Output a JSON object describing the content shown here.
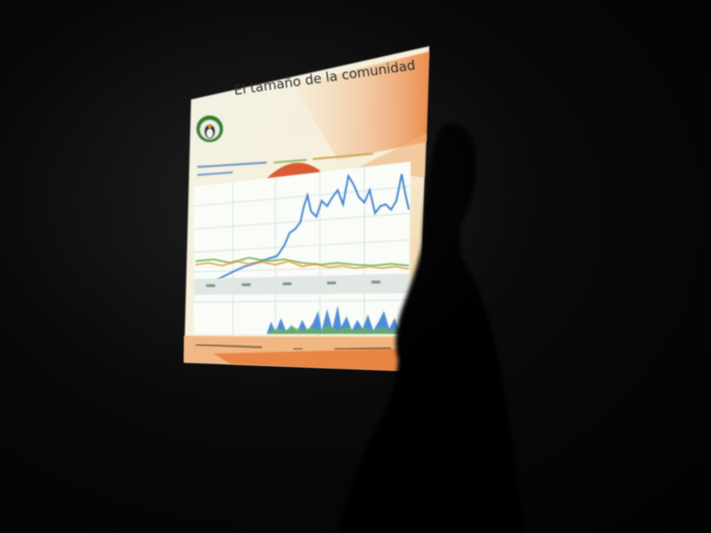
{
  "slide": {
    "title": "El tamaño de la comunidad"
  },
  "colors": {
    "slide_bg": "#f4f2e6",
    "accent_orange": "#e9772e",
    "accent_peach": "#f6c89a",
    "chart_bg": "#fafcf8",
    "series_blue": "#3b7fcf",
    "series_green": "#6ab04c",
    "series_orange": "#e39a2b",
    "silhouette": "#030303"
  },
  "icons": [
    "penguin-logo-icon"
  ]
}
